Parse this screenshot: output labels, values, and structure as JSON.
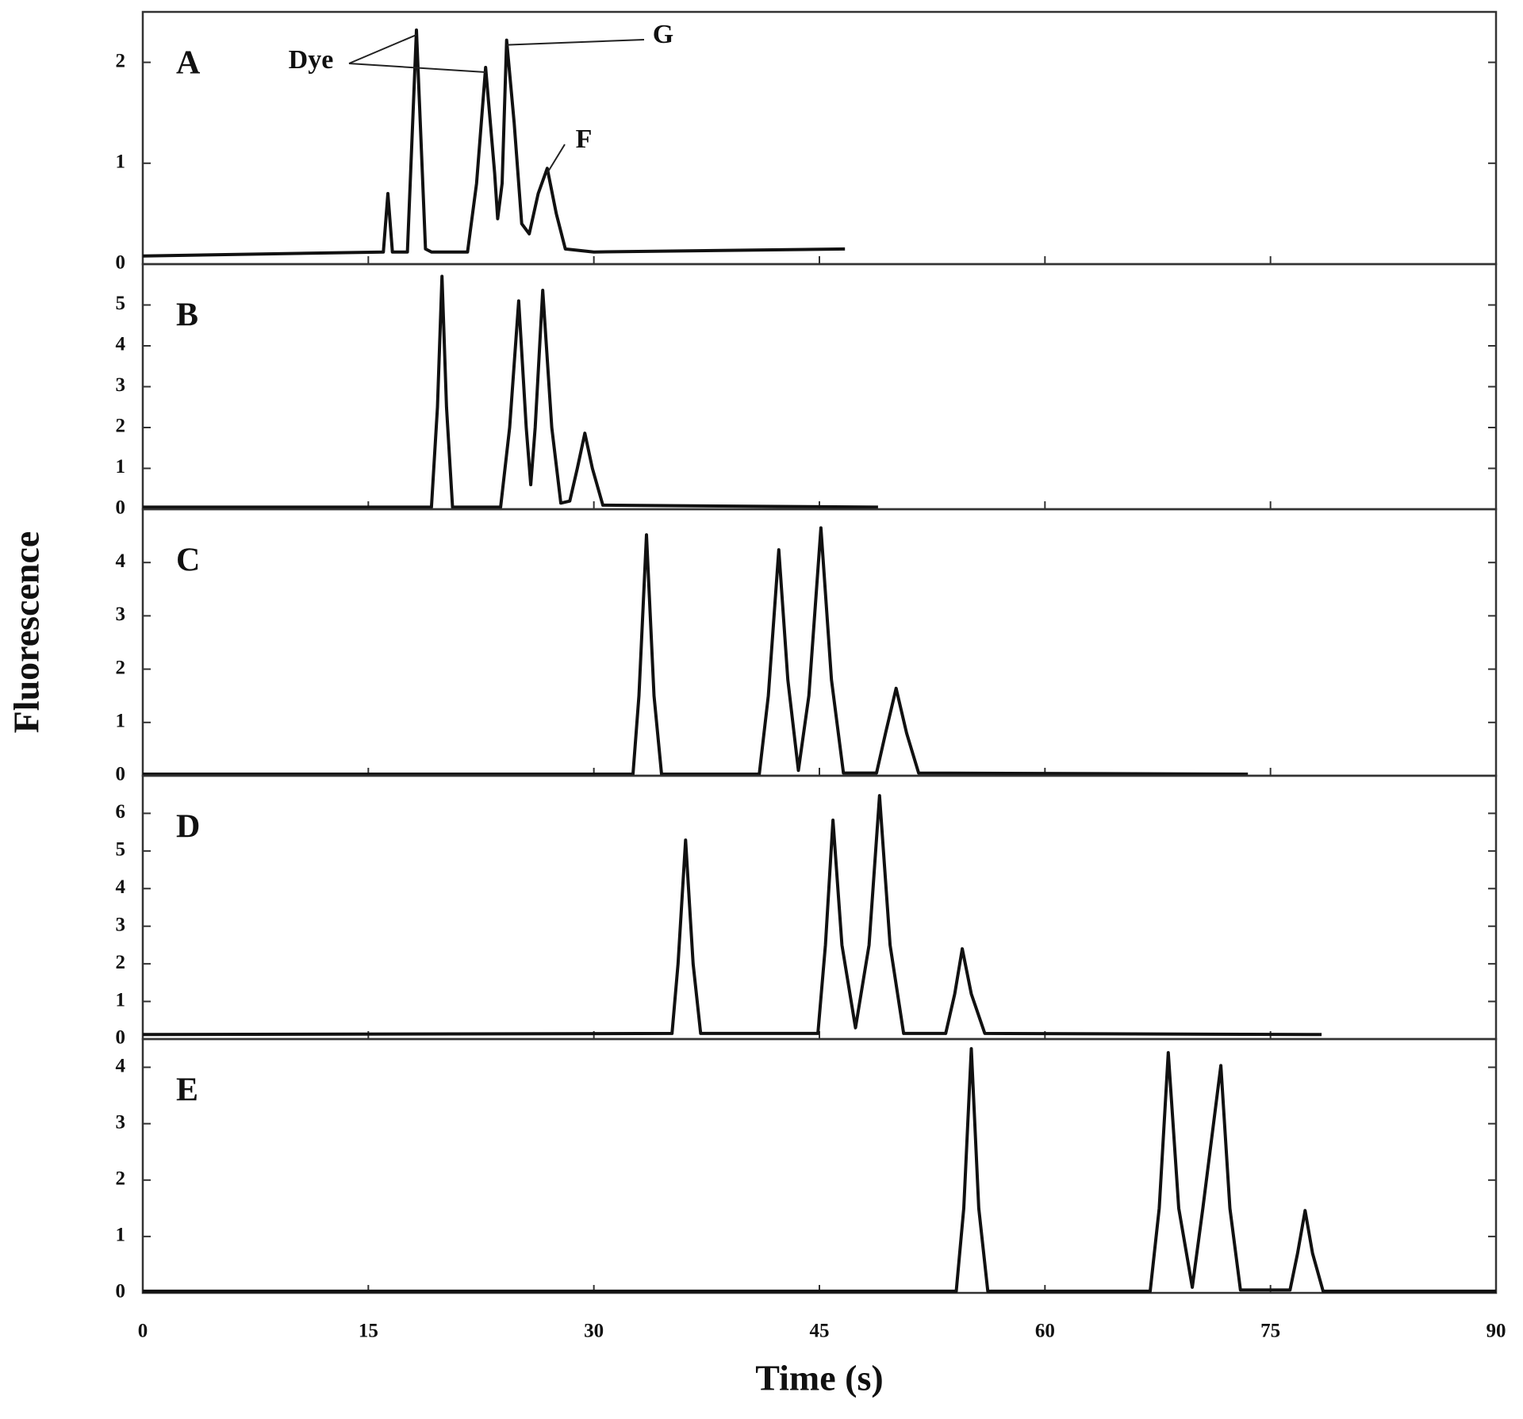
{
  "chart_data": [
    {
      "type": "line",
      "label": "A",
      "xlim": [
        0,
        90
      ],
      "ylim": [
        0,
        2.5
      ],
      "yticks": [
        0,
        1,
        2
      ],
      "color": "#111111",
      "x": [
        0,
        16.0,
        16.3,
        16.6,
        17.6,
        18.2,
        18.8,
        19.2,
        21.6,
        22.2,
        22.8,
        23.4,
        23.6,
        23.9,
        24.2,
        24.7,
        25.2,
        25.7,
        26.3,
        26.9,
        27.5,
        28.1,
        30,
        46.7
      ],
      "values": [
        0.08,
        0.12,
        0.7,
        0.12,
        0.12,
        2.32,
        0.15,
        0.12,
        0.12,
        0.8,
        1.95,
        0.9,
        0.45,
        0.8,
        2.22,
        1.4,
        0.4,
        0.3,
        0.7,
        0.95,
        0.5,
        0.15,
        0.12,
        0.15
      ],
      "annotations": [
        "Dye",
        "G",
        "F"
      ]
    },
    {
      "type": "line",
      "label": "B",
      "xlim": [
        0,
        90
      ],
      "ylim": [
        0,
        6
      ],
      "yticks": [
        0,
        1,
        2,
        3,
        4,
        5
      ],
      "color": "#111111",
      "x": [
        0,
        19.2,
        19.6,
        19.9,
        20.2,
        20.6,
        23.8,
        24.4,
        25.0,
        25.5,
        25.8,
        26.1,
        26.6,
        27.2,
        27.8,
        28.4,
        28.9,
        29.4,
        29.9,
        30.6,
        48.9
      ],
      "values": [
        0.05,
        0.05,
        2.5,
        5.7,
        2.5,
        0.05,
        0.05,
        2.0,
        5.1,
        2.0,
        0.6,
        2.0,
        5.36,
        2.0,
        0.15,
        0.2,
        1.0,
        1.86,
        1.0,
        0.1,
        0.05
      ]
    },
    {
      "type": "line",
      "label": "C",
      "xlim": [
        0,
        90
      ],
      "ylim": [
        0,
        5
      ],
      "yticks": [
        0,
        1,
        2,
        3,
        4
      ],
      "color": "#111111",
      "x": [
        0,
        32.6,
        33.0,
        33.5,
        34.0,
        34.5,
        41.0,
        41.6,
        42.3,
        42.9,
        43.6,
        44.3,
        45.1,
        45.8,
        46.6,
        48.8,
        49.4,
        50.1,
        50.8,
        51.6,
        73.5
      ],
      "values": [
        0.03,
        0.03,
        1.5,
        4.52,
        1.5,
        0.03,
        0.03,
        1.5,
        4.24,
        1.8,
        0.1,
        1.5,
        4.65,
        1.8,
        0.05,
        0.05,
        0.8,
        1.64,
        0.8,
        0.05,
        0.03
      ]
    },
    {
      "type": "line",
      "label": "D",
      "xlim": [
        0,
        90
      ],
      "ylim": [
        0,
        7
      ],
      "yticks": [
        0,
        1,
        2,
        3,
        4,
        5,
        6
      ],
      "color": "#111111",
      "x": [
        0,
        35.2,
        35.6,
        36.1,
        36.6,
        37.1,
        44.9,
        45.4,
        45.9,
        46.5,
        47.4,
        48.3,
        49.0,
        49.7,
        50.6,
        53.4,
        54.0,
        54.5,
        55.1,
        56.0,
        78.4
      ],
      "values": [
        0.12,
        0.15,
        2.0,
        5.29,
        2.0,
        0.15,
        0.15,
        2.5,
        5.82,
        2.5,
        0.3,
        2.5,
        6.47,
        2.5,
        0.15,
        0.15,
        1.2,
        2.4,
        1.2,
        0.15,
        0.12
      ]
    },
    {
      "type": "line",
      "label": "E",
      "xlim": [
        0,
        90
      ],
      "ylim": [
        0,
        4.5
      ],
      "yticks": [
        0,
        1,
        2,
        3,
        4
      ],
      "xticks": [
        0,
        15,
        30,
        45,
        60,
        75,
        90
      ],
      "color": "#111111",
      "x": [
        0,
        54.1,
        54.6,
        55.1,
        55.6,
        56.2,
        67.0,
        67.6,
        68.2,
        68.9,
        69.8,
        70.5,
        71.7,
        72.3,
        73.0,
        76.3,
        76.8,
        77.3,
        77.8,
        78.5,
        90
      ],
      "values": [
        0.03,
        0.03,
        1.5,
        4.33,
        1.5,
        0.03,
        0.03,
        1.5,
        4.26,
        1.5,
        0.1,
        1.5,
        4.03,
        1.5,
        0.05,
        0.05,
        0.7,
        1.46,
        0.7,
        0.03,
        0.03
      ]
    }
  ],
  "xlabel": "Time (s)",
  "ylabel": "Fluorescence"
}
